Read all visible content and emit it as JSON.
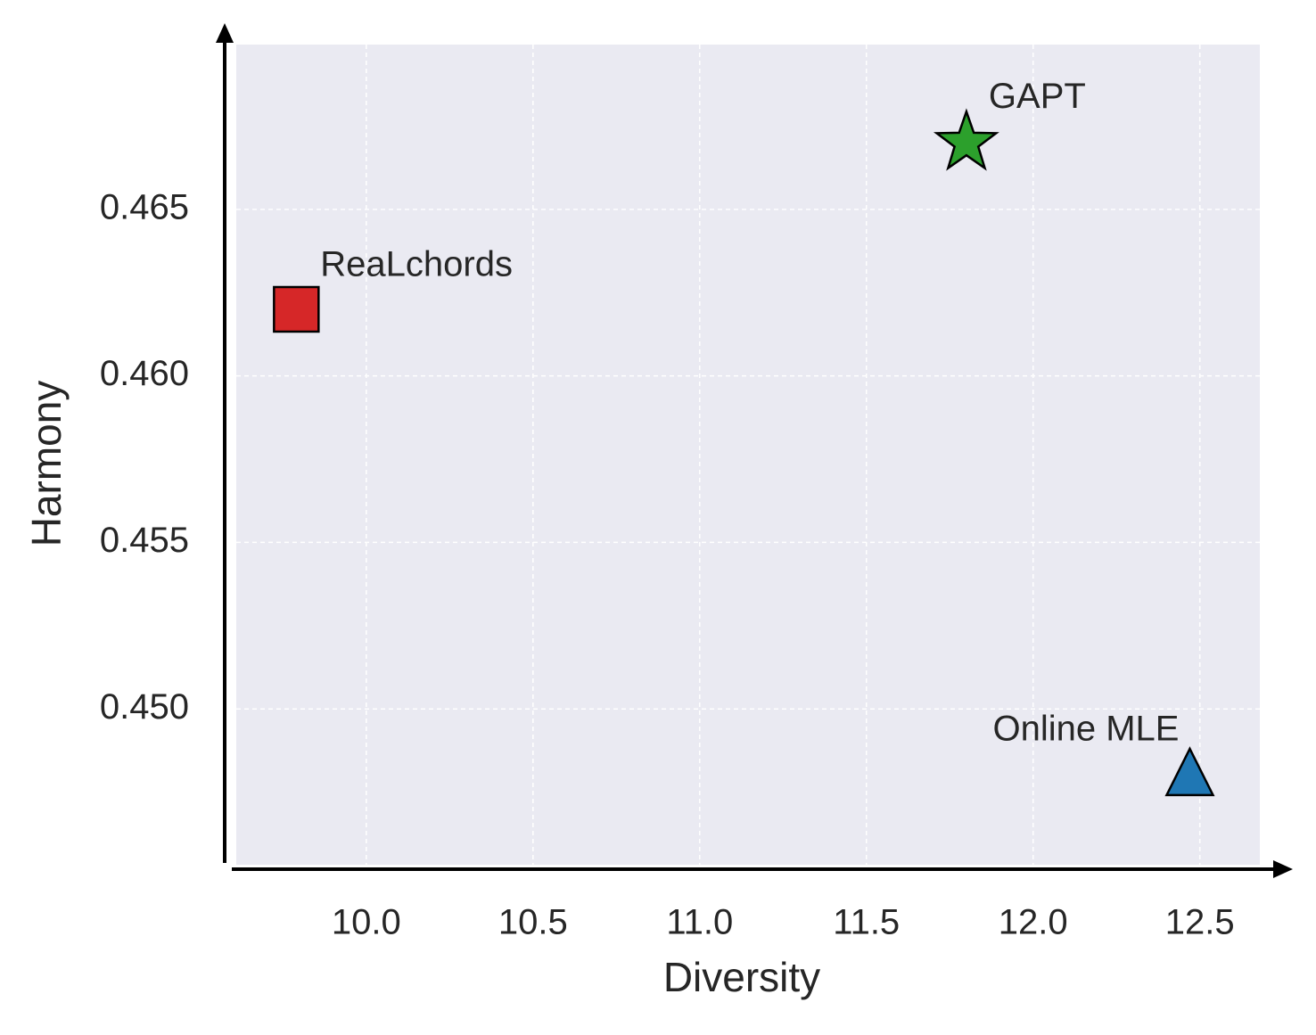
{
  "chart_data": {
    "type": "scatter",
    "xlabel": "Diversity",
    "ylabel": "Harmony",
    "xlim": [
      9.61,
      12.68
    ],
    "ylim": [
      0.44532,
      0.46995
    ],
    "xticks": [
      {
        "value": 10,
        "label": "10.0"
      },
      10.5,
      {
        "value": 11,
        "label": "11.0"
      },
      11.5,
      {
        "value": 12,
        "label": "12.0"
      },
      12.5
    ],
    "yticks": [
      {
        "value": 0.45,
        "label": "0.450"
      },
      0.455,
      {
        "value": 0.46,
        "label": "0.460"
      },
      0.465
    ],
    "grid": true,
    "series": [
      {
        "name": "ReaLchords",
        "color": "#d62728",
        "marker": "square",
        "x": [
          9.79
        ],
        "values": [
          0.462
        ]
      },
      {
        "name": "GAPT",
        "color": "#2ca02c",
        "marker": "star",
        "x": [
          11.8
        ],
        "values": [
          0.467
        ]
      },
      {
        "name": "Online MLE",
        "color": "#1f77b4",
        "marker": "triangle",
        "x": [
          12.47
        ],
        "values": [
          0.448
        ]
      }
    ]
  }
}
